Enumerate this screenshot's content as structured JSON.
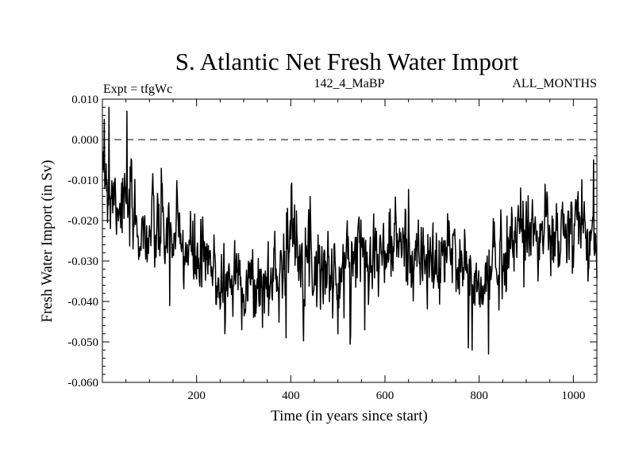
{
  "chart_data": {
    "type": "line",
    "title": "S. Atlantic Net Fresh Water Import",
    "subtitle_left": "Expt = tfgWc",
    "subtitle_center": "142_4_MaBP",
    "subtitle_right": "ALL_MONTHS",
    "xlabel": "Time (in years since start)",
    "ylabel": "Fresh Water Import (in Sv)",
    "xlim": [
      0,
      1050
    ],
    "ylim": [
      -0.06,
      0.01
    ],
    "xticks": [
      200,
      400,
      600,
      800,
      1000
    ],
    "yticks": [
      -0.06,
      -0.05,
      -0.04,
      -0.03,
      -0.02,
      -0.01,
      0.0,
      0.01
    ],
    "ytick_labels": [
      "-0.060",
      "-0.050",
      "-0.040",
      "-0.030",
      "-0.020",
      "-0.010",
      "0.000",
      "0.010"
    ],
    "reference_line": {
      "y": 0.0,
      "style": "dashed"
    },
    "series": [
      {
        "name": "Net fresh water import",
        "trend_x": [
          0,
          10,
          30,
          50,
          70,
          100,
          130,
          160,
          200,
          230,
          260,
          290,
          320,
          350,
          380,
          400,
          420,
          450,
          480,
          500,
          530,
          560,
          590,
          620,
          650,
          680,
          710,
          740,
          770,
          790,
          810,
          830,
          850,
          870,
          900,
          930,
          960,
          1000,
          1020,
          1050
        ],
        "trend_y": [
          -0.006,
          -0.01,
          -0.014,
          -0.016,
          -0.021,
          -0.024,
          -0.022,
          -0.025,
          -0.03,
          -0.032,
          -0.036,
          -0.033,
          -0.037,
          -0.036,
          -0.03,
          -0.023,
          -0.026,
          -0.03,
          -0.032,
          -0.036,
          -0.028,
          -0.025,
          -0.03,
          -0.025,
          -0.027,
          -0.03,
          -0.032,
          -0.027,
          -0.031,
          -0.038,
          -0.037,
          -0.03,
          -0.029,
          -0.024,
          -0.021,
          -0.023,
          -0.025,
          -0.023,
          -0.021,
          -0.028
        ],
        "noise_sd": 0.0055,
        "peaks": [
          {
            "x": 4,
            "y": 0.005
          },
          {
            "x": 14,
            "y": 0.008
          },
          {
            "x": 17,
            "y": -0.022
          },
          {
            "x": 52,
            "y": 0.007
          },
          {
            "x": 143,
            "y": -0.041
          },
          {
            "x": 260,
            "y": -0.048
          },
          {
            "x": 390,
            "y": -0.049
          },
          {
            "x": 500,
            "y": -0.048
          },
          {
            "x": 557,
            "y": -0.047
          },
          {
            "x": 785,
            "y": -0.052
          },
          {
            "x": 820,
            "y": -0.053
          },
          {
            "x": 940,
            "y": -0.011
          },
          {
            "x": 1043,
            "y": -0.005
          }
        ]
      }
    ]
  }
}
